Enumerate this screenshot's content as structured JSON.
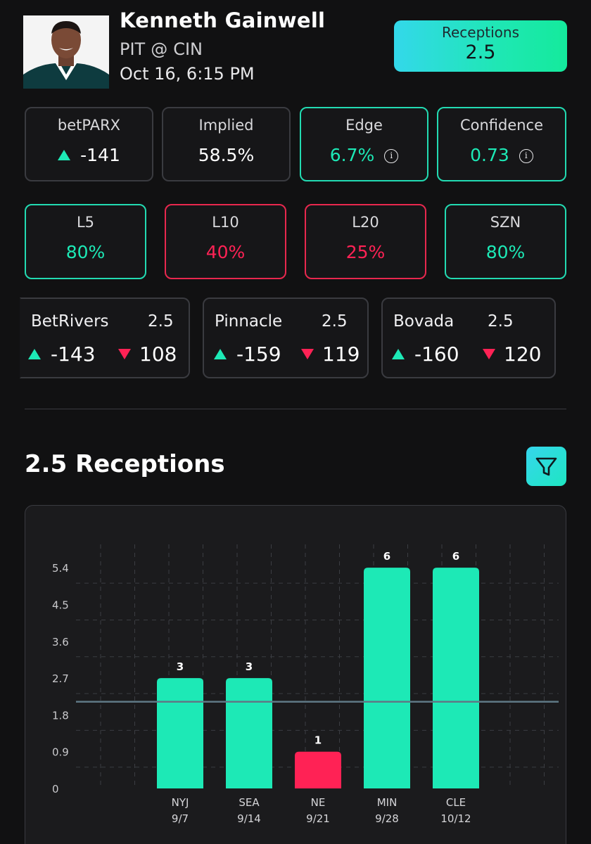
{
  "player": {
    "name": "Kenneth Gainwell",
    "team": "PIT",
    "at": "@",
    "opponent": "CIN",
    "game_time": "Oct 16, 6:15 PM",
    "avatar_icon": "player-headshot"
  },
  "prop": {
    "label": "Receptions",
    "line": "2.5"
  },
  "stats": {
    "betparx": {
      "title": "betPARX",
      "value": "-141"
    },
    "implied": {
      "title": "Implied",
      "value": "58.5%"
    },
    "edge": {
      "title": "Edge",
      "value": "6.7%"
    },
    "confidence": {
      "title": "Confidence",
      "value": "0.73"
    },
    "info_glyph": "i"
  },
  "hit_rates": [
    {
      "title": "L5",
      "value": "80%",
      "status": "green"
    },
    {
      "title": "L10",
      "value": "40%",
      "status": "red"
    },
    {
      "title": "L20",
      "value": "25%",
      "status": "red"
    },
    {
      "title": "SZN",
      "value": "80%",
      "status": "green"
    }
  ],
  "books": [
    {
      "name": "BetRivers",
      "line": "2.5",
      "over": "-143",
      "under": "108"
    },
    {
      "name": "Pinnacle",
      "line": "2.5",
      "over": "-159",
      "under": "119"
    },
    {
      "name": "Bovada",
      "line": "2.5",
      "over": "-160",
      "under": "120"
    }
  ],
  "section_title": "2.5 Receptions",
  "colors": {
    "accent_green": "#1de9b6",
    "accent_red": "#ff2255",
    "line": "#5f7885"
  },
  "chart_data": {
    "type": "bar",
    "categories": [
      "NYJ",
      "SEA",
      "NE",
      "MIN",
      "CLE"
    ],
    "dates": [
      "9/7",
      "9/14",
      "9/21",
      "9/28",
      "10/12"
    ],
    "values": [
      3,
      3,
      1,
      6,
      6
    ],
    "value_labels": [
      "3",
      "3",
      "1",
      "6",
      "6"
    ],
    "yticks": [
      "0",
      "0.9",
      "1.8",
      "2.7",
      "3.6",
      "4.5",
      "5.4"
    ],
    "ylim": [
      0,
      6.5
    ],
    "threshold": 2.5,
    "grid": true,
    "title": "",
    "xlabel": "",
    "ylabel": ""
  }
}
